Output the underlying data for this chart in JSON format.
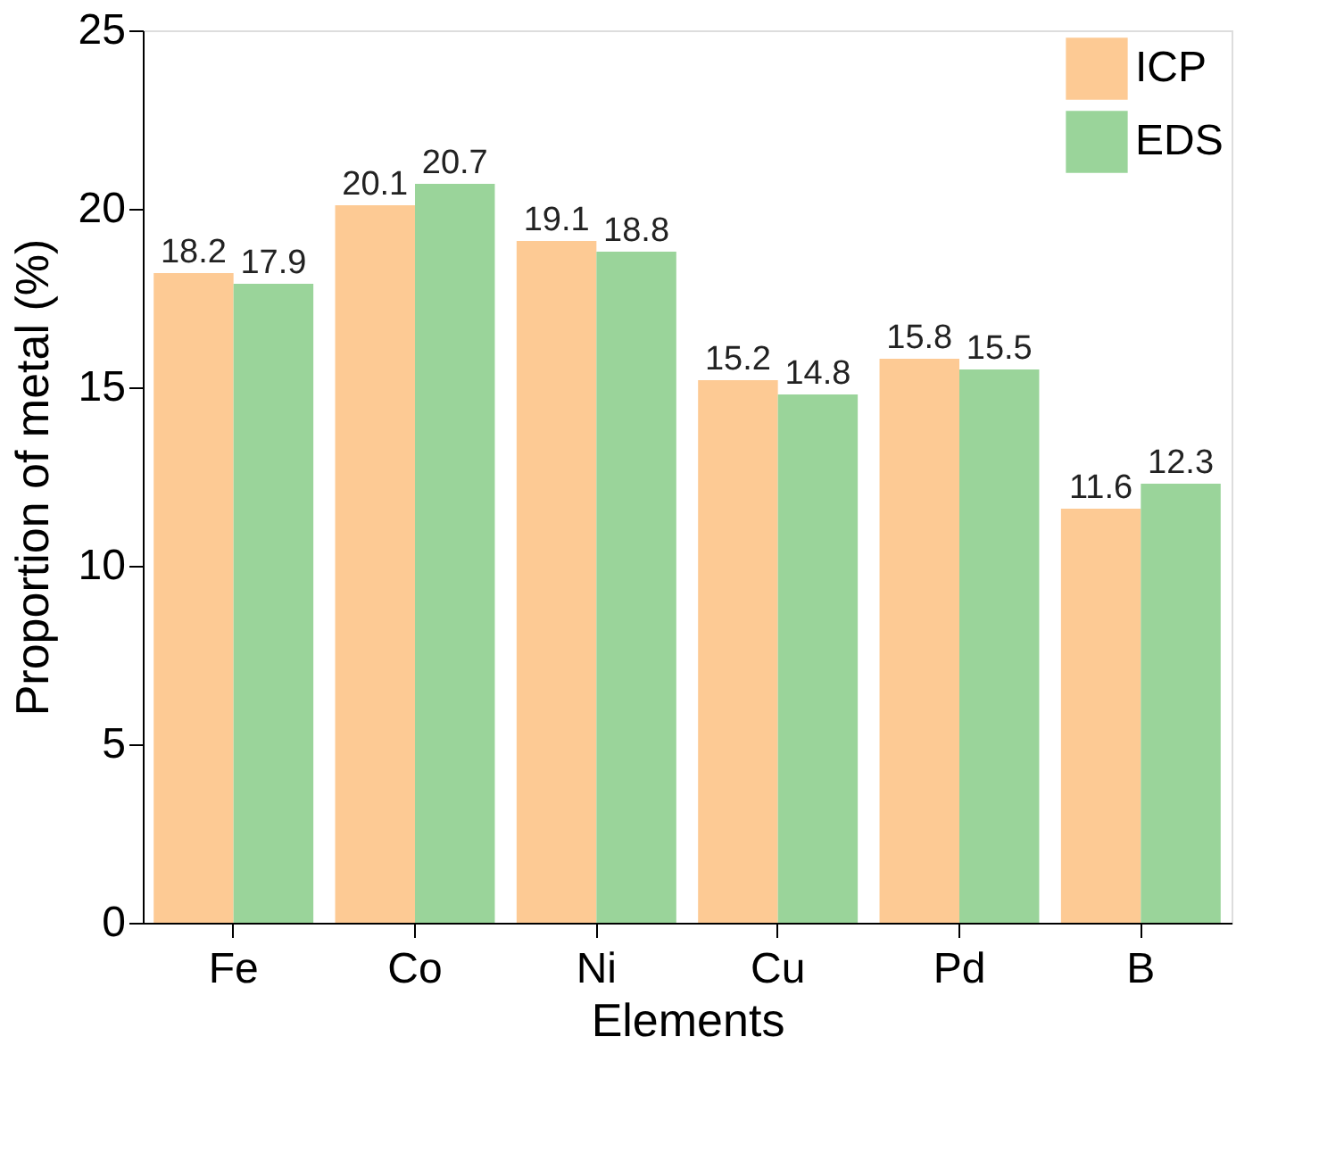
{
  "chart_data": {
    "type": "bar",
    "xlabel": "Elements",
    "ylabel": "Proportion of metal (%)",
    "categories": [
      "Fe",
      "Co",
      "Ni",
      "Cu",
      "Pd",
      "B"
    ],
    "series": [
      {
        "name": "ICP",
        "color": "#fdca94",
        "values": [
          18.2,
          20.1,
          19.1,
          15.2,
          15.8,
          11.6
        ]
      },
      {
        "name": "EDS",
        "color": "#9ad49a",
        "values": [
          17.9,
          20.7,
          18.8,
          14.8,
          15.5,
          12.3
        ]
      }
    ],
    "ylim": [
      0,
      25
    ],
    "yticks": [
      0,
      5,
      10,
      15,
      20,
      25
    ],
    "data_labels": true,
    "grid": false,
    "legend": "top right"
  }
}
